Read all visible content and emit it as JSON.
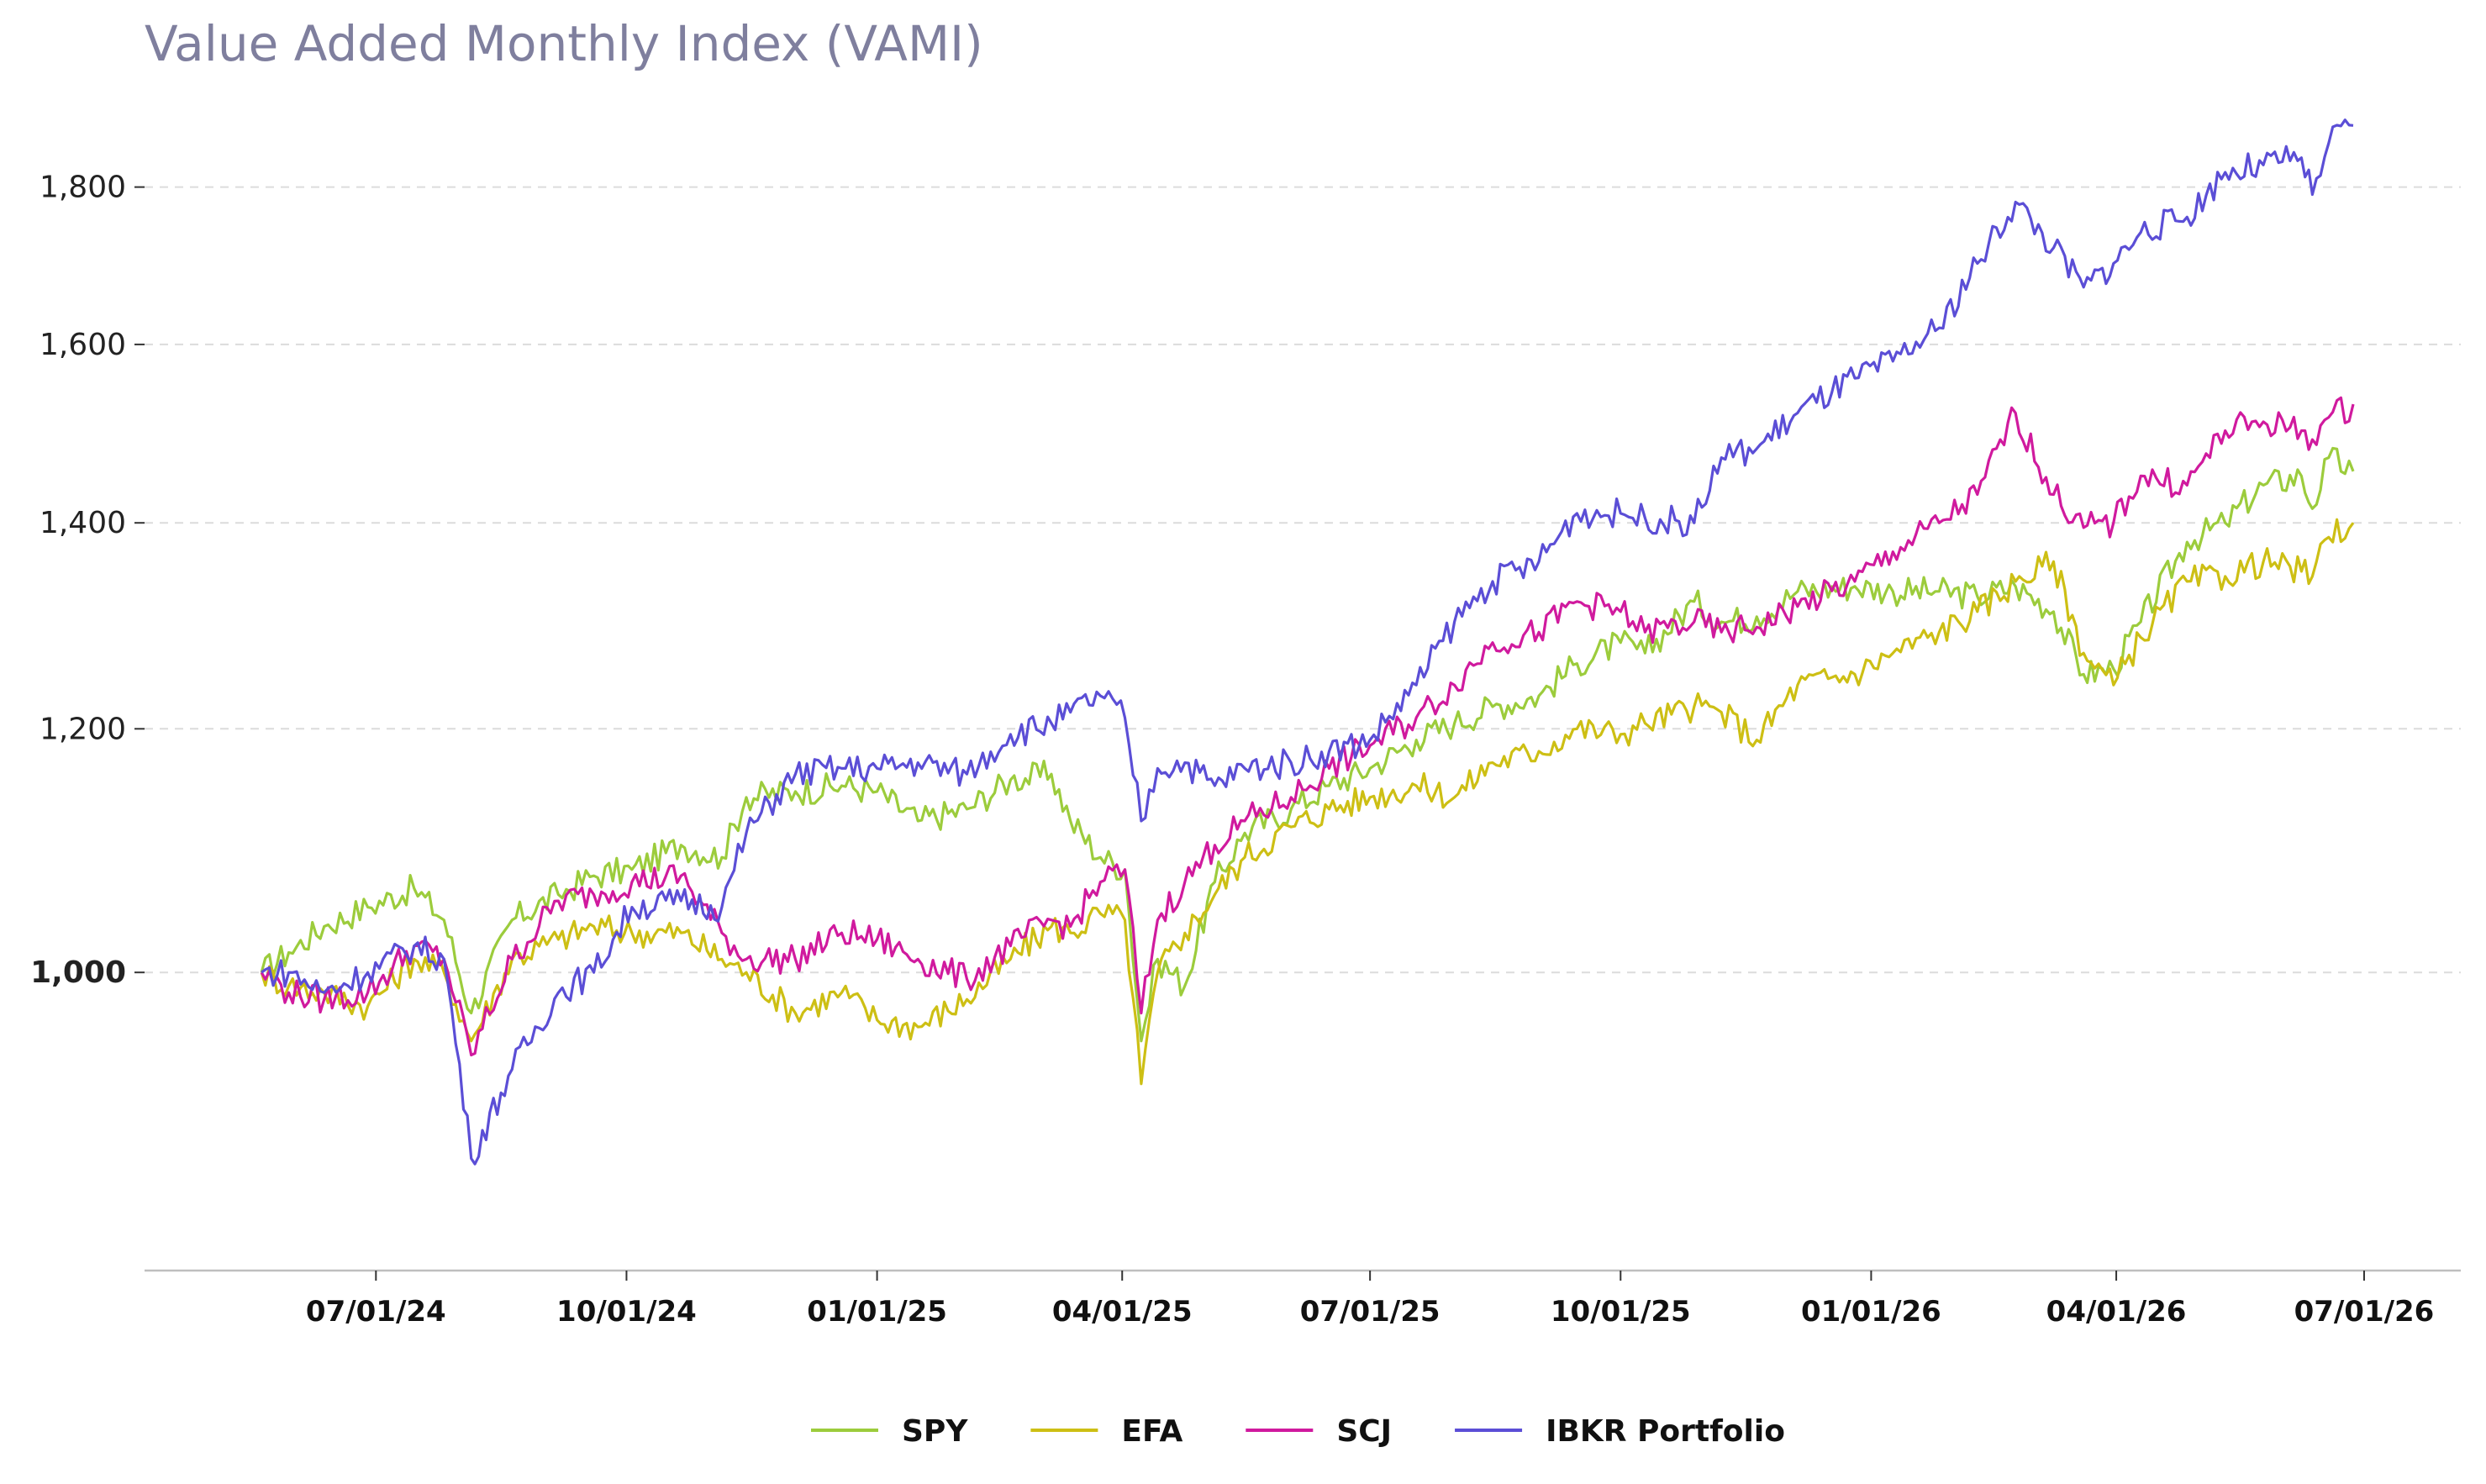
{
  "chart_data": {
    "type": "line",
    "title": "Value Added Monthly Index (VAMI)",
    "xlabel": "",
    "ylabel": "",
    "x_range": [
      "2024-05-15",
      "2026-06-27"
    ],
    "ylim": [
      800,
      1920
    ],
    "y_scale": "log",
    "grid": "horizontal dashed",
    "legend_position": "bottom-center",
    "y_ticks": [
      {
        "value": 1000,
        "label": "1,000",
        "bold": true
      },
      {
        "value": 1200,
        "label": "1,200",
        "bold": false
      },
      {
        "value": 1400,
        "label": "1,400",
        "bold": false
      },
      {
        "value": 1600,
        "label": "1,600",
        "bold": false
      },
      {
        "value": 1800,
        "label": "1,800",
        "bold": false
      }
    ],
    "x_ticks": [
      {
        "date": "2024-07-01",
        "label": "07/01/24"
      },
      {
        "date": "2024-10-01",
        "label": "10/01/24"
      },
      {
        "date": "2025-01-01",
        "label": "01/01/25"
      },
      {
        "date": "2025-04-01",
        "label": "04/01/25"
      },
      {
        "date": "2025-07-01",
        "label": "07/01/25"
      },
      {
        "date": "2025-10-01",
        "label": "10/01/25"
      },
      {
        "date": "2026-01-01",
        "label": "01/01/26"
      },
      {
        "date": "2026-04-01",
        "label": "04/01/26"
      },
      {
        "date": "2026-07-01",
        "label": "07/01/26"
      }
    ],
    "series": [
      {
        "name": "SPY",
        "color": "#9ccc3c",
        "points": [
          [
            "2024-05-20",
            1000
          ],
          [
            "2024-05-30",
            1015
          ],
          [
            "2024-06-12",
            1035
          ],
          [
            "2024-06-28",
            1050
          ],
          [
            "2024-07-15",
            1065
          ],
          [
            "2024-07-26",
            1040
          ],
          [
            "2024-08-05",
            970
          ],
          [
            "2024-08-20",
            1040
          ],
          [
            "2024-09-06",
            1060
          ],
          [
            "2024-09-19",
            1075
          ],
          [
            "2024-10-03",
            1080
          ],
          [
            "2024-10-21",
            1100
          ],
          [
            "2024-11-05",
            1090
          ],
          [
            "2024-11-14",
            1140
          ],
          [
            "2024-12-02",
            1145
          ],
          [
            "2024-12-19",
            1150
          ],
          [
            "2025-01-01",
            1145
          ],
          [
            "2025-01-16",
            1120
          ],
          [
            "2025-02-03",
            1130
          ],
          [
            "2025-02-19",
            1155
          ],
          [
            "2025-03-06",
            1160
          ],
          [
            "2025-03-13",
            1120
          ],
          [
            "2025-03-24",
            1090
          ],
          [
            "2025-04-02",
            1080
          ],
          [
            "2025-04-08",
            950
          ],
          [
            "2025-04-14",
            1010
          ],
          [
            "2025-04-24",
            990
          ],
          [
            "2025-05-05",
            1070
          ],
          [
            "2025-05-16",
            1110
          ],
          [
            "2025-06-02",
            1130
          ],
          [
            "2025-06-16",
            1150
          ],
          [
            "2025-07-01",
            1165
          ],
          [
            "2025-07-18",
            1190
          ],
          [
            "2025-08-01",
            1205
          ],
          [
            "2025-08-15",
            1220
          ],
          [
            "2025-09-01",
            1230
          ],
          [
            "2025-09-15",
            1260
          ],
          [
            "2025-10-01",
            1280
          ],
          [
            "2025-10-10",
            1270
          ],
          [
            "2025-10-28",
            1320
          ],
          [
            "2025-11-07",
            1300
          ],
          [
            "2025-11-20",
            1305
          ],
          [
            "2025-12-05",
            1330
          ],
          [
            "2025-12-26",
            1335
          ],
          [
            "2026-01-09",
            1330
          ],
          [
            "2026-01-26",
            1330
          ],
          [
            "2026-02-09",
            1325
          ],
          [
            "2026-02-23",
            1335
          ],
          [
            "2026-03-09",
            1310
          ],
          [
            "2026-03-20",
            1250
          ],
          [
            "2026-03-31",
            1255
          ],
          [
            "2026-04-10",
            1300
          ],
          [
            "2026-04-27",
            1380
          ],
          [
            "2026-05-11",
            1400
          ],
          [
            "2026-05-25",
            1440
          ],
          [
            "2026-06-08",
            1450
          ],
          [
            "2026-06-12",
            1415
          ],
          [
            "2026-06-18",
            1470
          ],
          [
            "2026-06-27",
            1455
          ]
        ]
      },
      {
        "name": "EFA",
        "color": "#cdbf14",
        "points": [
          [
            "2024-05-20",
            1000
          ],
          [
            "2024-05-30",
            990
          ],
          [
            "2024-06-12",
            985
          ],
          [
            "2024-06-28",
            975
          ],
          [
            "2024-07-15",
            1010
          ],
          [
            "2024-07-26",
            1000
          ],
          [
            "2024-08-05",
            950
          ],
          [
            "2024-08-20",
            1010
          ],
          [
            "2024-09-06",
            1025
          ],
          [
            "2024-09-19",
            1035
          ],
          [
            "2024-10-03",
            1030
          ],
          [
            "2024-10-21",
            1030
          ],
          [
            "2024-11-05",
            1010
          ],
          [
            "2024-11-14",
            1000
          ],
          [
            "2024-12-02",
            970
          ],
          [
            "2024-12-19",
            985
          ],
          [
            "2025-01-01",
            965
          ],
          [
            "2025-01-16",
            960
          ],
          [
            "2025-02-03",
            980
          ],
          [
            "2025-02-19",
            1010
          ],
          [
            "2025-03-06",
            1035
          ],
          [
            "2025-03-13",
            1030
          ],
          [
            "2025-03-24",
            1045
          ],
          [
            "2025-04-02",
            1040
          ],
          [
            "2025-04-08",
            920
          ],
          [
            "2025-04-14",
            1000
          ],
          [
            "2025-04-24",
            1030
          ],
          [
            "2025-05-05",
            1060
          ],
          [
            "2025-05-16",
            1090
          ],
          [
            "2025-06-02",
            1115
          ],
          [
            "2025-06-16",
            1130
          ],
          [
            "2025-07-01",
            1140
          ],
          [
            "2025-07-18",
            1150
          ],
          [
            "2025-08-01",
            1140
          ],
          [
            "2025-08-15",
            1170
          ],
          [
            "2025-09-01",
            1180
          ],
          [
            "2025-09-15",
            1200
          ],
          [
            "2025-10-01",
            1195
          ],
          [
            "2025-10-10",
            1205
          ],
          [
            "2025-10-28",
            1220
          ],
          [
            "2025-11-07",
            1215
          ],
          [
            "2025-11-20",
            1190
          ],
          [
            "2025-12-05",
            1240
          ],
          [
            "2025-12-26",
            1250
          ],
          [
            "2026-01-09",
            1270
          ],
          [
            "2026-01-26",
            1290
          ],
          [
            "2026-02-09",
            1310
          ],
          [
            "2026-02-23",
            1340
          ],
          [
            "2026-03-09",
            1360
          ],
          [
            "2026-03-20",
            1270
          ],
          [
            "2026-03-31",
            1240
          ],
          [
            "2026-04-10",
            1285
          ],
          [
            "2026-04-27",
            1340
          ],
          [
            "2026-05-11",
            1345
          ],
          [
            "2026-05-25",
            1360
          ],
          [
            "2026-06-08",
            1350
          ],
          [
            "2026-06-12",
            1345
          ],
          [
            "2026-06-18",
            1385
          ],
          [
            "2026-06-27",
            1400
          ]
        ]
      },
      {
        "name": "SCJ",
        "color": "#d01a9e",
        "points": [
          [
            "2024-05-20",
            1000
          ],
          [
            "2024-05-30",
            985
          ],
          [
            "2024-06-12",
            980
          ],
          [
            "2024-06-28",
            985
          ],
          [
            "2024-07-15",
            1020
          ],
          [
            "2024-07-26",
            1010
          ],
          [
            "2024-08-05",
            940
          ],
          [
            "2024-08-20",
            1010
          ],
          [
            "2024-09-06",
            1055
          ],
          [
            "2024-09-19",
            1060
          ],
          [
            "2024-10-03",
            1070
          ],
          [
            "2024-10-21",
            1075
          ],
          [
            "2024-11-05",
            1030
          ],
          [
            "2024-11-14",
            1010
          ],
          [
            "2024-12-02",
            1010
          ],
          [
            "2024-12-19",
            1030
          ],
          [
            "2025-01-01",
            1025
          ],
          [
            "2025-01-16",
            1010
          ],
          [
            "2025-02-03",
            995
          ],
          [
            "2025-02-19",
            1020
          ],
          [
            "2025-03-06",
            1040
          ],
          [
            "2025-03-13",
            1035
          ],
          [
            "2025-03-24",
            1070
          ],
          [
            "2025-04-02",
            1080
          ],
          [
            "2025-04-08",
            970
          ],
          [
            "2025-04-14",
            1040
          ],
          [
            "2025-04-24",
            1070
          ],
          [
            "2025-05-05",
            1100
          ],
          [
            "2025-05-16",
            1120
          ],
          [
            "2025-06-02",
            1140
          ],
          [
            "2025-06-16",
            1165
          ],
          [
            "2025-07-01",
            1185
          ],
          [
            "2025-07-18",
            1210
          ],
          [
            "2025-08-01",
            1240
          ],
          [
            "2025-08-15",
            1280
          ],
          [
            "2025-09-01",
            1290
          ],
          [
            "2025-09-15",
            1320
          ],
          [
            "2025-10-01",
            1310
          ],
          [
            "2025-10-10",
            1290
          ],
          [
            "2025-10-28",
            1300
          ],
          [
            "2025-11-07",
            1290
          ],
          [
            "2025-11-20",
            1295
          ],
          [
            "2025-12-05",
            1315
          ],
          [
            "2025-12-26",
            1340
          ],
          [
            "2026-01-09",
            1370
          ],
          [
            "2026-01-26",
            1400
          ],
          [
            "2026-02-09",
            1430
          ],
          [
            "2026-02-23",
            1520
          ],
          [
            "2026-03-09",
            1430
          ],
          [
            "2026-03-20",
            1395
          ],
          [
            "2026-03-31",
            1400
          ],
          [
            "2026-04-10",
            1450
          ],
          [
            "2026-04-27",
            1440
          ],
          [
            "2026-05-11",
            1500
          ],
          [
            "2026-05-25",
            1510
          ],
          [
            "2026-06-08",
            1500
          ],
          [
            "2026-06-12",
            1490
          ],
          [
            "2026-06-18",
            1515
          ],
          [
            "2026-06-27",
            1530
          ]
        ]
      },
      {
        "name": "IBKR Portfolio",
        "color": "#5b4ed6",
        "points": [
          [
            "2024-05-20",
            1000
          ],
          [
            "2024-05-30",
            1000
          ],
          [
            "2024-06-12",
            985
          ],
          [
            "2024-06-28",
            1000
          ],
          [
            "2024-07-15",
            1020
          ],
          [
            "2024-07-26",
            1010
          ],
          [
            "2024-08-05",
            870
          ],
          [
            "2024-08-20",
            930
          ],
          [
            "2024-09-06",
            985
          ],
          [
            "2024-09-19",
            1000
          ],
          [
            "2024-10-03",
            1050
          ],
          [
            "2024-10-21",
            1055
          ],
          [
            "2024-11-05",
            1050
          ],
          [
            "2024-11-14",
            1110
          ],
          [
            "2024-12-02",
            1160
          ],
          [
            "2024-12-19",
            1165
          ],
          [
            "2025-01-01",
            1165
          ],
          [
            "2025-01-16",
            1170
          ],
          [
            "2025-02-03",
            1160
          ],
          [
            "2025-02-19",
            1195
          ],
          [
            "2025-03-06",
            1205
          ],
          [
            "2025-03-13",
            1215
          ],
          [
            "2025-03-24",
            1230
          ],
          [
            "2025-04-02",
            1210
          ],
          [
            "2025-04-08",
            1120
          ],
          [
            "2025-04-14",
            1165
          ],
          [
            "2025-04-24",
            1170
          ],
          [
            "2025-05-05",
            1150
          ],
          [
            "2025-05-16",
            1165
          ],
          [
            "2025-06-02",
            1170
          ],
          [
            "2025-06-16",
            1180
          ],
          [
            "2025-07-01",
            1190
          ],
          [
            "2025-07-18",
            1240
          ],
          [
            "2025-08-01",
            1300
          ],
          [
            "2025-08-15",
            1340
          ],
          [
            "2025-09-01",
            1360
          ],
          [
            "2025-09-15",
            1410
          ],
          [
            "2025-10-01",
            1410
          ],
          [
            "2025-10-10",
            1405
          ],
          [
            "2025-10-28",
            1400
          ],
          [
            "2025-11-07",
            1470
          ],
          [
            "2025-11-20",
            1480
          ],
          [
            "2025-12-05",
            1520
          ],
          [
            "2025-12-26",
            1560
          ],
          [
            "2026-01-09",
            1580
          ],
          [
            "2026-01-26",
            1620
          ],
          [
            "2026-02-09",
            1700
          ],
          [
            "2026-02-23",
            1780
          ],
          [
            "2026-03-09",
            1720
          ],
          [
            "2026-03-20",
            1670
          ],
          [
            "2026-03-31",
            1700
          ],
          [
            "2026-04-10",
            1740
          ],
          [
            "2026-04-27",
            1760
          ],
          [
            "2026-05-11",
            1820
          ],
          [
            "2026-05-25",
            1830
          ],
          [
            "2026-06-08",
            1840
          ],
          [
            "2026-06-12",
            1790
          ],
          [
            "2026-06-18",
            1860
          ],
          [
            "2026-06-27",
            1885
          ]
        ]
      }
    ]
  }
}
